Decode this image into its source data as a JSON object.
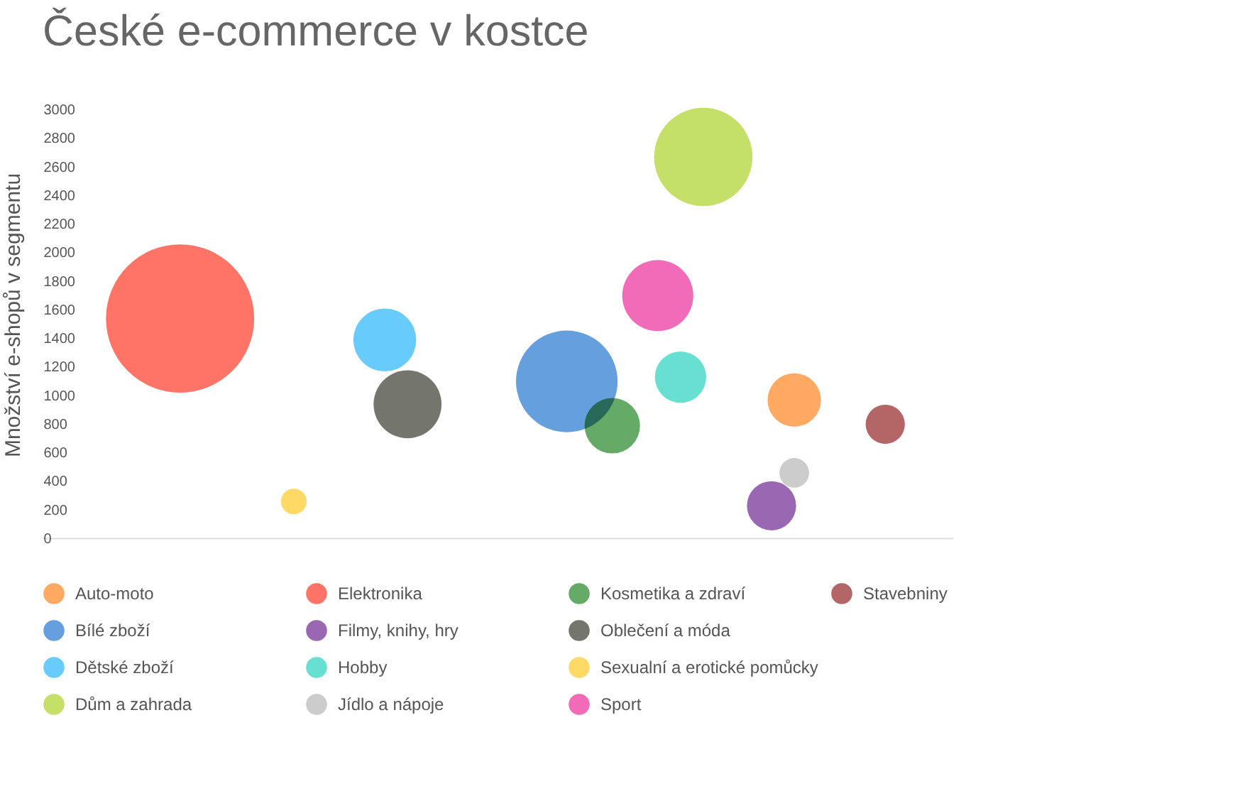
{
  "chart_data": {
    "type": "bubble",
    "title": "České e-commerce v kostce",
    "ylabel": "Množství e-shopů v segmentu",
    "categories": [
      null,
      null,
      null,
      null,
      null,
      null,
      null,
      null,
      null,
      null,
      null,
      null,
      null,
      null,
      null,
      null,
      null,
      null,
      null,
      null,
      null,
      null,
      null,
      null,
      null,
      null,
      null,
      null,
      null,
      null,
      null,
      null,
      null,
      null,
      null,
      null,
      null,
      null,
      null,
      null,
      null
    ],
    "ylim": [
      0,
      3000
    ],
    "yticks": [
      0,
      200,
      400,
      600,
      800,
      1000,
      1200,
      1400,
      1600,
      1800,
      2000,
      2200,
      2400,
      2600,
      2800,
      3000
    ],
    "legend": "bottom",
    "series": [
      {
        "name": "Auto-moto",
        "color": "#ffa963",
        "values": [
          null,
          null,
          null,
          null,
          null,
          null,
          null,
          null,
          null,
          null,
          null,
          null,
          null,
          null,
          null,
          null,
          null,
          null,
          null,
          null,
          null,
          null,
          null,
          null,
          null,
          null,
          null,
          null,
          null,
          null,
          null,
          null,
          null,
          970,
          null,
          null,
          null,
          null,
          null,
          null,
          null
        ],
        "sizes": [
          null,
          null,
          null,
          null,
          null,
          null,
          null,
          null,
          null,
          null,
          null,
          null,
          null,
          null,
          null,
          null,
          null,
          null,
          null,
          null,
          null,
          null,
          null,
          null,
          null,
          null,
          null,
          null,
          null,
          null,
          null,
          null,
          null,
          0.13,
          null,
          null,
          null,
          null,
          null,
          null,
          null
        ]
      },
      {
        "name": "Bílé zboží",
        "color": "#659fdd",
        "values": [
          null,
          null,
          null,
          null,
          null,
          null,
          null,
          null,
          null,
          null,
          null,
          null,
          null,
          null,
          null,
          null,
          null,
          null,
          null,
          null,
          null,
          null,
          null,
          1100,
          null,
          null,
          null,
          null,
          null,
          null,
          null,
          null,
          null,
          null,
          null,
          null,
          null,
          null,
          null,
          null,
          null
        ],
        "sizes": [
          null,
          null,
          null,
          null,
          null,
          null,
          null,
          null,
          null,
          null,
          null,
          null,
          null,
          null,
          null,
          null,
          null,
          null,
          null,
          null,
          null,
          null,
          null,
          0.47,
          null,
          null,
          null,
          null,
          null,
          null,
          null,
          null,
          null,
          null,
          null,
          null,
          null,
          null,
          null,
          null,
          null
        ]
      },
      {
        "name": "Dětské zboží",
        "color": "#67ccfc",
        "values": [
          null,
          null,
          null,
          null,
          null,
          null,
          null,
          null,
          null,
          null,
          null,
          null,
          null,
          null,
          null,
          1390,
          null,
          null,
          null,
          null,
          null,
          null,
          null,
          null,
          null,
          null,
          null,
          null,
          null,
          null,
          null,
          null,
          null,
          null,
          null,
          null,
          null,
          null,
          null,
          null,
          null
        ],
        "sizes": [
          null,
          null,
          null,
          null,
          null,
          null,
          null,
          null,
          null,
          null,
          null,
          null,
          null,
          null,
          null,
          0.18,
          null,
          null,
          null,
          null,
          null,
          null,
          null,
          null,
          null,
          null,
          null,
          null,
          null,
          null,
          null,
          null,
          null,
          null,
          null,
          null,
          null,
          null,
          null,
          null,
          null
        ]
      },
      {
        "name": "Dům a zahrada",
        "color": "#c5e068",
        "values": [
          null,
          null,
          null,
          null,
          null,
          null,
          null,
          null,
          null,
          null,
          null,
          null,
          null,
          null,
          null,
          null,
          null,
          null,
          null,
          null,
          null,
          null,
          null,
          null,
          null,
          null,
          null,
          null,
          null,
          2670,
          null,
          null,
          null,
          null,
          null,
          null,
          null,
          null,
          null,
          null,
          null
        ],
        "sizes": [
          null,
          null,
          null,
          null,
          null,
          null,
          null,
          null,
          null,
          null,
          null,
          null,
          null,
          null,
          null,
          null,
          null,
          null,
          null,
          null,
          null,
          null,
          null,
          null,
          null,
          null,
          null,
          null,
          null,
          0.44,
          null,
          null,
          null,
          null,
          null,
          null,
          null,
          null,
          null,
          null,
          null
        ]
      },
      {
        "name": "Elektronika",
        "color": "#ff7466",
        "values": [
          null,
          null,
          null,
          null,
          null,
          null,
          1540,
          null,
          null,
          null,
          null,
          null,
          null,
          null,
          null,
          null,
          null,
          null,
          null,
          null,
          null,
          null,
          null,
          null,
          null,
          null,
          null,
          null,
          null,
          null,
          null,
          null,
          null,
          null,
          null,
          null,
          null,
          null,
          null,
          null,
          null
        ],
        "sizes": [
          null,
          null,
          null,
          null,
          null,
          null,
          1,
          null,
          null,
          null,
          null,
          null,
          null,
          null,
          null,
          null,
          null,
          null,
          null,
          null,
          null,
          null,
          null,
          null,
          null,
          null,
          null,
          null,
          null,
          null,
          null,
          null,
          null,
          null,
          null,
          null,
          null,
          null,
          null,
          null,
          null
        ]
      },
      {
        "name": "Filmy, knihy, hry",
        "color": "#9a67b2",
        "values": [
          null,
          null,
          null,
          null,
          null,
          null,
          null,
          null,
          null,
          null,
          null,
          null,
          null,
          null,
          null,
          null,
          null,
          null,
          null,
          null,
          null,
          null,
          null,
          null,
          null,
          null,
          null,
          null,
          null,
          null,
          null,
          null,
          230,
          null,
          null,
          null,
          null,
          null,
          null,
          null,
          null
        ],
        "sizes": [
          null,
          null,
          null,
          null,
          null,
          null,
          null,
          null,
          null,
          null,
          null,
          null,
          null,
          null,
          null,
          null,
          null,
          null,
          null,
          null,
          null,
          null,
          null,
          null,
          null,
          null,
          null,
          null,
          null,
          null,
          null,
          null,
          0.11,
          null,
          null,
          null,
          null,
          null,
          null,
          null,
          null
        ]
      },
      {
        "name": "Hobby",
        "color": "#67e0d2",
        "values": [
          null,
          null,
          null,
          null,
          null,
          null,
          null,
          null,
          null,
          null,
          null,
          null,
          null,
          null,
          null,
          null,
          null,
          null,
          null,
          null,
          null,
          null,
          null,
          null,
          null,
          null,
          null,
          null,
          1130,
          null,
          null,
          null,
          null,
          null,
          null,
          null,
          null,
          null,
          null,
          null,
          null
        ],
        "sizes": [
          null,
          null,
          null,
          null,
          null,
          null,
          null,
          null,
          null,
          null,
          null,
          null,
          null,
          null,
          null,
          null,
          null,
          null,
          null,
          null,
          null,
          null,
          null,
          null,
          null,
          null,
          null,
          null,
          0.12,
          null,
          null,
          null,
          null,
          null,
          null,
          null,
          null,
          null,
          null,
          null,
          null
        ]
      },
      {
        "name": "Jídlo a nápoje",
        "color": "#cccccc",
        "values": [
          null,
          null,
          null,
          null,
          null,
          null,
          null,
          null,
          null,
          null,
          null,
          null,
          null,
          null,
          null,
          null,
          null,
          null,
          null,
          null,
          null,
          null,
          null,
          null,
          null,
          null,
          null,
          null,
          null,
          null,
          null,
          null,
          null,
          460,
          null,
          null,
          null,
          null,
          null,
          null,
          null
        ],
        "sizes": [
          null,
          null,
          null,
          null,
          null,
          null,
          null,
          null,
          null,
          null,
          null,
          null,
          null,
          null,
          null,
          null,
          null,
          null,
          null,
          null,
          null,
          null,
          null,
          null,
          null,
          null,
          null,
          null,
          null,
          null,
          null,
          null,
          null,
          0.04,
          null,
          null,
          null,
          null,
          null,
          null,
          null
        ]
      },
      {
        "name": "Kosmetika a zdraví",
        "color": "#65aa67",
        "values": [
          null,
          null,
          null,
          null,
          null,
          null,
          null,
          null,
          null,
          null,
          null,
          null,
          null,
          null,
          null,
          null,
          null,
          null,
          null,
          null,
          null,
          null,
          null,
          null,
          null,
          790,
          null,
          null,
          null,
          null,
          null,
          null,
          null,
          null,
          null,
          null,
          null,
          null,
          null,
          null,
          null
        ],
        "sizes": [
          null,
          null,
          null,
          null,
          null,
          null,
          null,
          null,
          null,
          null,
          null,
          null,
          null,
          null,
          null,
          null,
          null,
          null,
          null,
          null,
          null,
          null,
          null,
          null,
          null,
          0.14,
          null,
          null,
          null,
          null,
          null,
          null,
          null,
          null,
          null,
          null,
          null,
          null,
          null,
          null,
          null
        ]
      },
      {
        "name": "Oblečení a móda",
        "color": "#74766e",
        "values": [
          null,
          null,
          null,
          null,
          null,
          null,
          null,
          null,
          null,
          null,
          null,
          null,
          null,
          null,
          null,
          null,
          940,
          null,
          null,
          null,
          null,
          null,
          null,
          null,
          null,
          null,
          null,
          null,
          null,
          null,
          null,
          null,
          null,
          null,
          null,
          null,
          null,
          null,
          null,
          null,
          null
        ],
        "sizes": [
          null,
          null,
          null,
          null,
          null,
          null,
          null,
          null,
          null,
          null,
          null,
          null,
          null,
          null,
          null,
          null,
          0.21,
          null,
          null,
          null,
          null,
          null,
          null,
          null,
          null,
          null,
          null,
          null,
          null,
          null,
          null,
          null,
          null,
          null,
          null,
          null,
          null,
          null,
          null,
          null,
          null
        ]
      },
      {
        "name": "Sexualní a erotické pomůcky",
        "color": "#ffd966",
        "values": [
          null,
          null,
          null,
          null,
          null,
          null,
          null,
          null,
          null,
          null,
          null,
          260,
          null,
          null,
          null,
          null,
          null,
          null,
          null,
          null,
          null,
          null,
          null,
          null,
          null,
          null,
          null,
          null,
          null,
          null,
          null,
          null,
          null,
          null,
          null,
          null,
          null,
          null,
          null,
          null,
          null
        ],
        "sizes": [
          null,
          null,
          null,
          null,
          null,
          null,
          null,
          null,
          null,
          null,
          null,
          0.03,
          null,
          null,
          null,
          null,
          null,
          null,
          null,
          null,
          null,
          null,
          null,
          null,
          null,
          null,
          null,
          null,
          null,
          null,
          null,
          null,
          null,
          null,
          null,
          null,
          null,
          null,
          null,
          null,
          null
        ]
      },
      {
        "name": "Sport",
        "color": "#f26bb8",
        "values": [
          null,
          null,
          null,
          null,
          null,
          null,
          null,
          null,
          null,
          null,
          null,
          null,
          null,
          null,
          null,
          null,
          null,
          null,
          null,
          null,
          null,
          null,
          null,
          null,
          null,
          null,
          null,
          1700,
          null,
          null,
          null,
          null,
          null,
          null,
          null,
          null,
          null,
          null,
          null,
          null,
          null
        ],
        "sizes": [
          null,
          null,
          null,
          null,
          null,
          null,
          null,
          null,
          null,
          null,
          null,
          null,
          null,
          null,
          null,
          null,
          null,
          null,
          null,
          null,
          null,
          null,
          null,
          null,
          null,
          null,
          null,
          0.23,
          null,
          null,
          null,
          null,
          null,
          null,
          null,
          null,
          null,
          null,
          null,
          null,
          null
        ]
      },
      {
        "name": "Stavebniny",
        "color": "#b46565",
        "values": [
          null,
          null,
          null,
          null,
          null,
          null,
          null,
          null,
          null,
          null,
          null,
          null,
          null,
          null,
          null,
          null,
          null,
          null,
          null,
          null,
          null,
          null,
          null,
          null,
          null,
          null,
          null,
          null,
          null,
          null,
          null,
          null,
          null,
          null,
          null,
          null,
          null,
          800,
          null,
          null,
          null
        ],
        "sizes": [
          null,
          null,
          null,
          null,
          null,
          null,
          null,
          null,
          null,
          null,
          null,
          null,
          null,
          null,
          null,
          null,
          null,
          null,
          null,
          null,
          null,
          null,
          null,
          null,
          null,
          null,
          null,
          null,
          null,
          null,
          null,
          null,
          null,
          null,
          null,
          null,
          null,
          0.07,
          null,
          null,
          null
        ]
      }
    ]
  }
}
